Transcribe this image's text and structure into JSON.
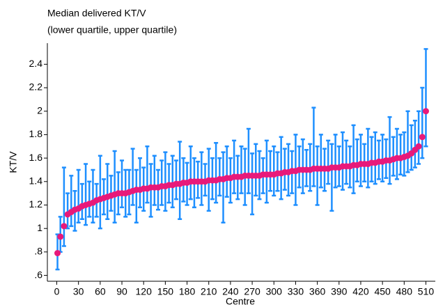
{
  "chart_data": {
    "type": "errorbar",
    "title": "Median delivered KT/V",
    "subtitle": "(lower quartile, upper quartile)",
    "xlabel": "Centre",
    "ylabel": "KT/V",
    "color": "#e8197a",
    "bar_color": "#1e8fff",
    "xlim": [
      -13,
      523
    ],
    "ylim": [
      0.55,
      2.58
    ],
    "xticks": [
      0,
      30,
      60,
      90,
      120,
      150,
      180,
      210,
      240,
      270,
      300,
      330,
      360,
      390,
      420,
      450,
      480,
      510
    ],
    "yticks": [
      {
        "value": 0.6,
        "label": ".6"
      },
      {
        "value": 0.8,
        "label": ".8"
      },
      1,
      1.2,
      1.4,
      1.6,
      1.8,
      2,
      2.2,
      2.4
    ],
    "x": [
      1,
      5,
      10,
      15,
      20,
      25,
      30,
      35,
      40,
      45,
      50,
      55,
      60,
      65,
      70,
      75,
      80,
      85,
      90,
      95,
      100,
      105,
      110,
      115,
      120,
      125,
      130,
      135,
      140,
      145,
      150,
      155,
      160,
      165,
      170,
      175,
      180,
      185,
      190,
      195,
      200,
      205,
      210,
      215,
      220,
      225,
      230,
      235,
      240,
      245,
      250,
      255,
      260,
      265,
      270,
      275,
      280,
      285,
      290,
      295,
      300,
      305,
      310,
      315,
      320,
      325,
      330,
      335,
      340,
      345,
      350,
      355,
      360,
      365,
      370,
      375,
      380,
      385,
      390,
      395,
      400,
      405,
      410,
      415,
      420,
      425,
      430,
      435,
      440,
      445,
      450,
      455,
      460,
      465,
      470,
      475,
      480,
      485,
      490,
      495,
      500,
      505,
      510
    ],
    "values": [
      0.79,
      0.93,
      1.02,
      1.12,
      1.14,
      1.16,
      1.17,
      1.19,
      1.2,
      1.21,
      1.22,
      1.24,
      1.25,
      1.26,
      1.27,
      1.28,
      1.29,
      1.3,
      1.3,
      1.3,
      1.31,
      1.32,
      1.33,
      1.33,
      1.34,
      1.34,
      1.35,
      1.35,
      1.35,
      1.36,
      1.36,
      1.37,
      1.37,
      1.38,
      1.38,
      1.39,
      1.39,
      1.4,
      1.4,
      1.4,
      1.4,
      1.4,
      1.41,
      1.41,
      1.41,
      1.42,
      1.42,
      1.43,
      1.43,
      1.44,
      1.44,
      1.44,
      1.45,
      1.45,
      1.45,
      1.45,
      1.45,
      1.46,
      1.46,
      1.46,
      1.46,
      1.47,
      1.47,
      1.48,
      1.48,
      1.49,
      1.49,
      1.5,
      1.5,
      1.5,
      1.5,
      1.51,
      1.51,
      1.51,
      1.51,
      1.51,
      1.52,
      1.52,
      1.52,
      1.53,
      1.53,
      1.53,
      1.54,
      1.54,
      1.55,
      1.55,
      1.55,
      1.56,
      1.56,
      1.57,
      1.57,
      1.58,
      1.58,
      1.59,
      1.6,
      1.6,
      1.61,
      1.62,
      1.64,
      1.67,
      1.7,
      1.78,
      2.0
    ],
    "lower": [
      0.65,
      0.8,
      0.85,
      1.0,
      1.02,
      0.98,
      1.05,
      1.08,
      1.03,
      1.1,
      1.05,
      1.1,
      1.0,
      1.12,
      1.08,
      1.15,
      1.05,
      1.12,
      1.18,
      1.1,
      1.12,
      1.2,
      1.05,
      1.18,
      1.15,
      1.22,
      1.1,
      1.2,
      1.16,
      1.2,
      1.15,
      1.22,
      1.18,
      1.25,
      1.08,
      1.23,
      1.2,
      1.25,
      1.18,
      1.26,
      1.2,
      1.28,
      1.15,
      1.25,
      1.22,
      1.28,
      1.05,
      1.27,
      1.22,
      1.3,
      1.25,
      1.3,
      1.2,
      1.3,
      1.12,
      1.28,
      1.25,
      1.3,
      1.22,
      1.32,
      1.28,
      1.32,
      1.25,
      1.33,
      1.28,
      1.3,
      1.2,
      1.35,
      1.3,
      1.36,
      1.32,
      1.36,
      1.2,
      1.35,
      1.32,
      1.38,
      1.15,
      1.35,
      1.36,
      1.33,
      1.38,
      1.35,
      1.3,
      1.4,
      1.36,
      1.4,
      1.35,
      1.4,
      1.38,
      1.42,
      1.4,
      1.43,
      1.38,
      1.45,
      1.42,
      1.46,
      1.45,
      1.48,
      1.5,
      1.52,
      1.55,
      1.6,
      1.7
    ],
    "upper": [
      0.95,
      1.1,
      1.52,
      1.3,
      1.45,
      1.32,
      1.5,
      1.38,
      1.55,
      1.4,
      1.5,
      1.38,
      1.62,
      1.42,
      1.55,
      1.45,
      1.66,
      1.48,
      1.58,
      1.5,
      1.5,
      1.68,
      1.5,
      1.6,
      1.52,
      1.7,
      1.55,
      1.62,
      1.5,
      1.58,
      1.65,
      1.55,
      1.62,
      1.58,
      1.74,
      1.6,
      1.56,
      1.7,
      1.6,
      1.57,
      1.65,
      1.55,
      1.68,
      1.6,
      1.73,
      1.6,
      1.65,
      1.7,
      1.6,
      1.75,
      1.62,
      1.7,
      1.68,
      1.85,
      1.64,
      1.72,
      1.66,
      1.6,
      1.75,
      1.66,
      1.7,
      1.65,
      1.78,
      1.68,
      1.72,
      1.66,
      1.8,
      1.7,
      1.76,
      1.67,
      1.72,
      2.03,
      1.7,
      1.8,
      1.68,
      1.75,
      1.72,
      1.8,
      1.7,
      1.82,
      1.75,
      1.7,
      1.88,
      1.76,
      1.8,
      1.72,
      1.85,
      1.78,
      1.82,
      1.75,
      1.8,
      1.76,
      1.95,
      1.78,
      1.85,
      1.8,
      1.82,
      2.0,
      1.88,
      1.92,
      2.0,
      2.2,
      2.53
    ]
  }
}
